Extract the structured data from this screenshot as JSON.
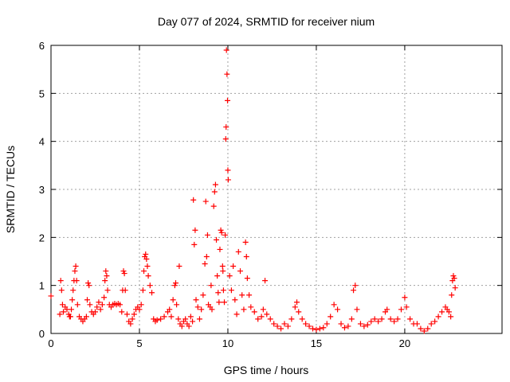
{
  "chart_data": {
    "type": "scatter",
    "title": "Day 077 of 2024, SRMTID for receiver nium",
    "xlabel": "GPS time / hours",
    "ylabel": "SRMTID / TECUs",
    "xlim": [
      0,
      25.5
    ],
    "ylim": [
      0,
      6
    ],
    "xticks": [
      0,
      5,
      10,
      15,
      20
    ],
    "yticks": [
      0,
      1,
      2,
      3,
      4,
      5,
      6
    ],
    "grid": true,
    "marker": "plus",
    "color": "#ff0000",
    "series": [
      {
        "name": "SRMTID",
        "points": [
          [
            0.0,
            0.78
          ],
          [
            0.5,
            0.4
          ],
          [
            0.55,
            1.1
          ],
          [
            0.6,
            0.9
          ],
          [
            0.65,
            0.6
          ],
          [
            0.7,
            0.45
          ],
          [
            0.8,
            0.55
          ],
          [
            0.9,
            0.5
          ],
          [
            1.0,
            0.4
          ],
          [
            1.05,
            0.35
          ],
          [
            1.1,
            0.35
          ],
          [
            1.15,
            0.5
          ],
          [
            1.2,
            0.7
          ],
          [
            1.25,
            0.9
          ],
          [
            1.3,
            1.1
          ],
          [
            1.35,
            1.3
          ],
          [
            1.4,
            1.4
          ],
          [
            1.45,
            1.1
          ],
          [
            1.5,
            0.6
          ],
          [
            1.6,
            0.35
          ],
          [
            1.7,
            0.3
          ],
          [
            1.8,
            0.25
          ],
          [
            1.9,
            0.3
          ],
          [
            2.0,
            0.35
          ],
          [
            2.05,
            0.7
          ],
          [
            2.1,
            1.05
          ],
          [
            2.15,
            1.0
          ],
          [
            2.2,
            0.6
          ],
          [
            2.3,
            0.45
          ],
          [
            2.4,
            0.4
          ],
          [
            2.5,
            0.45
          ],
          [
            2.6,
            0.55
          ],
          [
            2.7,
            0.65
          ],
          [
            2.8,
            0.5
          ],
          [
            2.9,
            0.6
          ],
          [
            3.0,
            0.75
          ],
          [
            3.05,
            1.1
          ],
          [
            3.1,
            1.3
          ],
          [
            3.15,
            1.2
          ],
          [
            3.2,
            0.9
          ],
          [
            3.3,
            0.6
          ],
          [
            3.4,
            0.55
          ],
          [
            3.5,
            0.6
          ],
          [
            3.6,
            0.62
          ],
          [
            3.7,
            0.6
          ],
          [
            3.8,
            0.62
          ],
          [
            3.9,
            0.6
          ],
          [
            4.0,
            0.45
          ],
          [
            4.05,
            0.9
          ],
          [
            4.1,
            1.3
          ],
          [
            4.15,
            1.25
          ],
          [
            4.2,
            0.9
          ],
          [
            4.3,
            0.4
          ],
          [
            4.4,
            0.25
          ],
          [
            4.5,
            0.2
          ],
          [
            4.6,
            0.3
          ],
          [
            4.7,
            0.4
          ],
          [
            4.8,
            0.5
          ],
          [
            4.9,
            0.55
          ],
          [
            5.0,
            0.5
          ],
          [
            5.1,
            0.6
          ],
          [
            5.2,
            0.9
          ],
          [
            5.25,
            1.3
          ],
          [
            5.3,
            1.6
          ],
          [
            5.35,
            1.65
          ],
          [
            5.4,
            1.55
          ],
          [
            5.45,
            1.4
          ],
          [
            5.5,
            1.2
          ],
          [
            5.6,
            1.0
          ],
          [
            5.7,
            0.85
          ],
          [
            5.8,
            0.3
          ],
          [
            5.9,
            0.25
          ],
          [
            6.0,
            0.28
          ],
          [
            6.2,
            0.3
          ],
          [
            6.4,
            0.35
          ],
          [
            6.6,
            0.45
          ],
          [
            6.7,
            0.5
          ],
          [
            6.8,
            0.35
          ],
          [
            6.9,
            0.7
          ],
          [
            7.0,
            1.0
          ],
          [
            7.05,
            1.05
          ],
          [
            7.1,
            0.6
          ],
          [
            7.2,
            0.3
          ],
          [
            7.25,
            1.4
          ],
          [
            7.3,
            0.2
          ],
          [
            7.4,
            0.15
          ],
          [
            7.5,
            0.25
          ],
          [
            7.6,
            0.3
          ],
          [
            7.7,
            0.2
          ],
          [
            7.8,
            0.15
          ],
          [
            7.9,
            0.35
          ],
          [
            8.0,
            0.25
          ],
          [
            8.05,
            2.78
          ],
          [
            8.1,
            1.85
          ],
          [
            8.15,
            2.15
          ],
          [
            8.2,
            0.7
          ],
          [
            8.3,
            0.55
          ],
          [
            8.4,
            0.3
          ],
          [
            8.5,
            0.5
          ],
          [
            8.6,
            0.8
          ],
          [
            8.7,
            1.45
          ],
          [
            8.75,
            2.75
          ],
          [
            8.8,
            1.6
          ],
          [
            8.85,
            2.05
          ],
          [
            8.9,
            0.6
          ],
          [
            9.0,
            0.55
          ],
          [
            9.05,
            1.0
          ],
          [
            9.1,
            0.5
          ],
          [
            9.2,
            2.65
          ],
          [
            9.25,
            2.95
          ],
          [
            9.3,
            3.1
          ],
          [
            9.35,
            1.95
          ],
          [
            9.4,
            1.2
          ],
          [
            9.45,
            0.85
          ],
          [
            9.5,
            0.65
          ],
          [
            9.55,
            1.75
          ],
          [
            9.6,
            2.15
          ],
          [
            9.65,
            2.1
          ],
          [
            9.7,
            1.4
          ],
          [
            9.72,
            1.3
          ],
          [
            9.75,
            0.9
          ],
          [
            9.8,
            0.65
          ],
          [
            9.85,
            2.05
          ],
          [
            9.88,
            4.05
          ],
          [
            9.9,
            4.3
          ],
          [
            9.92,
            5.9
          ],
          [
            9.95,
            5.4
          ],
          [
            9.98,
            4.85
          ],
          [
            10.0,
            3.4
          ],
          [
            10.02,
            3.2
          ],
          [
            10.1,
            1.2
          ],
          [
            10.2,
            0.9
          ],
          [
            10.3,
            1.4
          ],
          [
            10.4,
            0.7
          ],
          [
            10.5,
            0.4
          ],
          [
            10.6,
            1.7
          ],
          [
            10.7,
            1.3
          ],
          [
            10.8,
            0.8
          ],
          [
            10.9,
            0.5
          ],
          [
            11.0,
            1.9
          ],
          [
            11.05,
            1.6
          ],
          [
            11.1,
            1.15
          ],
          [
            11.2,
            0.8
          ],
          [
            11.3,
            0.55
          ],
          [
            11.5,
            0.45
          ],
          [
            11.7,
            0.3
          ],
          [
            11.9,
            0.35
          ],
          [
            12.0,
            0.5
          ],
          [
            12.1,
            1.1
          ],
          [
            12.2,
            0.4
          ],
          [
            12.4,
            0.3
          ],
          [
            12.6,
            0.2
          ],
          [
            12.8,
            0.15
          ],
          [
            13.0,
            0.1
          ],
          [
            13.2,
            0.2
          ],
          [
            13.4,
            0.15
          ],
          [
            13.6,
            0.3
          ],
          [
            13.8,
            0.55
          ],
          [
            13.9,
            0.65
          ],
          [
            14.0,
            0.45
          ],
          [
            14.2,
            0.3
          ],
          [
            14.4,
            0.2
          ],
          [
            14.6,
            0.15
          ],
          [
            14.8,
            0.1
          ],
          [
            15.0,
            0.08
          ],
          [
            15.2,
            0.1
          ],
          [
            15.4,
            0.12
          ],
          [
            15.6,
            0.2
          ],
          [
            15.8,
            0.35
          ],
          [
            16.0,
            0.6
          ],
          [
            16.2,
            0.5
          ],
          [
            16.4,
            0.2
          ],
          [
            16.6,
            0.12
          ],
          [
            16.8,
            0.15
          ],
          [
            17.0,
            0.3
          ],
          [
            17.1,
            0.9
          ],
          [
            17.2,
            1.0
          ],
          [
            17.3,
            0.5
          ],
          [
            17.5,
            0.2
          ],
          [
            17.7,
            0.15
          ],
          [
            17.9,
            0.18
          ],
          [
            18.1,
            0.25
          ],
          [
            18.3,
            0.3
          ],
          [
            18.5,
            0.25
          ],
          [
            18.7,
            0.3
          ],
          [
            18.9,
            0.45
          ],
          [
            19.0,
            0.5
          ],
          [
            19.2,
            0.3
          ],
          [
            19.4,
            0.25
          ],
          [
            19.6,
            0.3
          ],
          [
            19.8,
            0.5
          ],
          [
            20.0,
            0.75
          ],
          [
            20.1,
            0.55
          ],
          [
            20.3,
            0.3
          ],
          [
            20.5,
            0.2
          ],
          [
            20.7,
            0.2
          ],
          [
            20.9,
            0.1
          ],
          [
            21.1,
            0.05
          ],
          [
            21.3,
            0.1
          ],
          [
            21.5,
            0.2
          ],
          [
            21.7,
            0.25
          ],
          [
            21.9,
            0.35
          ],
          [
            22.1,
            0.45
          ],
          [
            22.3,
            0.55
          ],
          [
            22.4,
            0.5
          ],
          [
            22.5,
            0.45
          ],
          [
            22.6,
            0.35
          ],
          [
            22.65,
            0.8
          ],
          [
            22.7,
            1.1
          ],
          [
            22.75,
            1.2
          ],
          [
            22.8,
            1.15
          ],
          [
            22.85,
            0.95
          ]
        ]
      }
    ]
  }
}
